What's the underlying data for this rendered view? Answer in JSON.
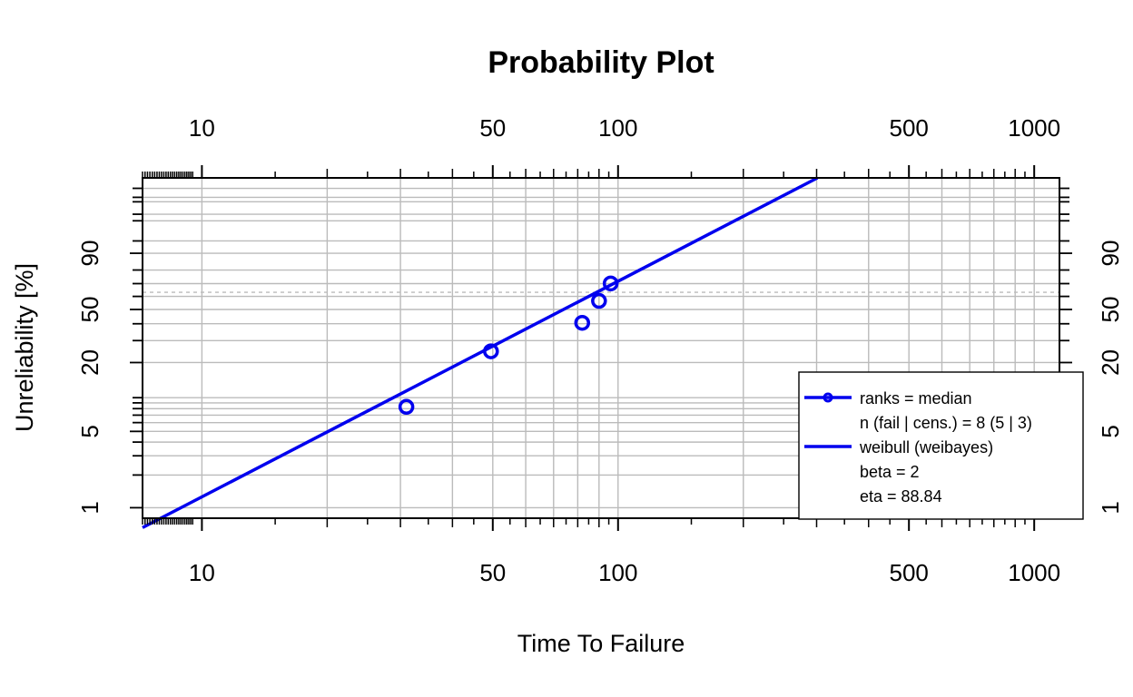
{
  "chart_data": {
    "type": "scatter",
    "title": "Probability Plot",
    "xlabel": "Time To Failure",
    "ylabel": "Unreliability [%]",
    "x_scale": "log",
    "y_scale": "weibull",
    "xlim": [
      7.2,
      1150
    ],
    "ylim": [
      0.8,
      99.999
    ],
    "x_ticks": [
      10,
      50,
      100,
      500,
      1000
    ],
    "y_ticks": [
      1,
      5,
      20,
      50,
      90
    ],
    "grid": true,
    "colors": {
      "series": "#0000ee",
      "grid": "#bbbbbb",
      "reference": "#bbbbbb"
    },
    "reference_line_y": 63.2,
    "series": [
      {
        "name": "ranks = median",
        "mode": "markers",
        "x": [
          31,
          49.5,
          82,
          90,
          96
        ],
        "y": [
          8.3,
          24.7,
          40.6,
          56.5,
          70.1
        ]
      },
      {
        "name": "weibull (weibayes)",
        "mode": "line",
        "beta": 2,
        "eta": 88.84
      }
    ],
    "legend": {
      "position": "bottom-right",
      "entries": [
        {
          "type": "line-marker",
          "text": "ranks = median"
        },
        {
          "type": "text",
          "text": "n (fail | cens.) = 8 (5 | 3)"
        },
        {
          "type": "line",
          "text": "weibull (weibayes)"
        },
        {
          "type": "text",
          "text": "beta = 2"
        },
        {
          "type": "text",
          "text": "eta = 88.84"
        }
      ]
    }
  }
}
